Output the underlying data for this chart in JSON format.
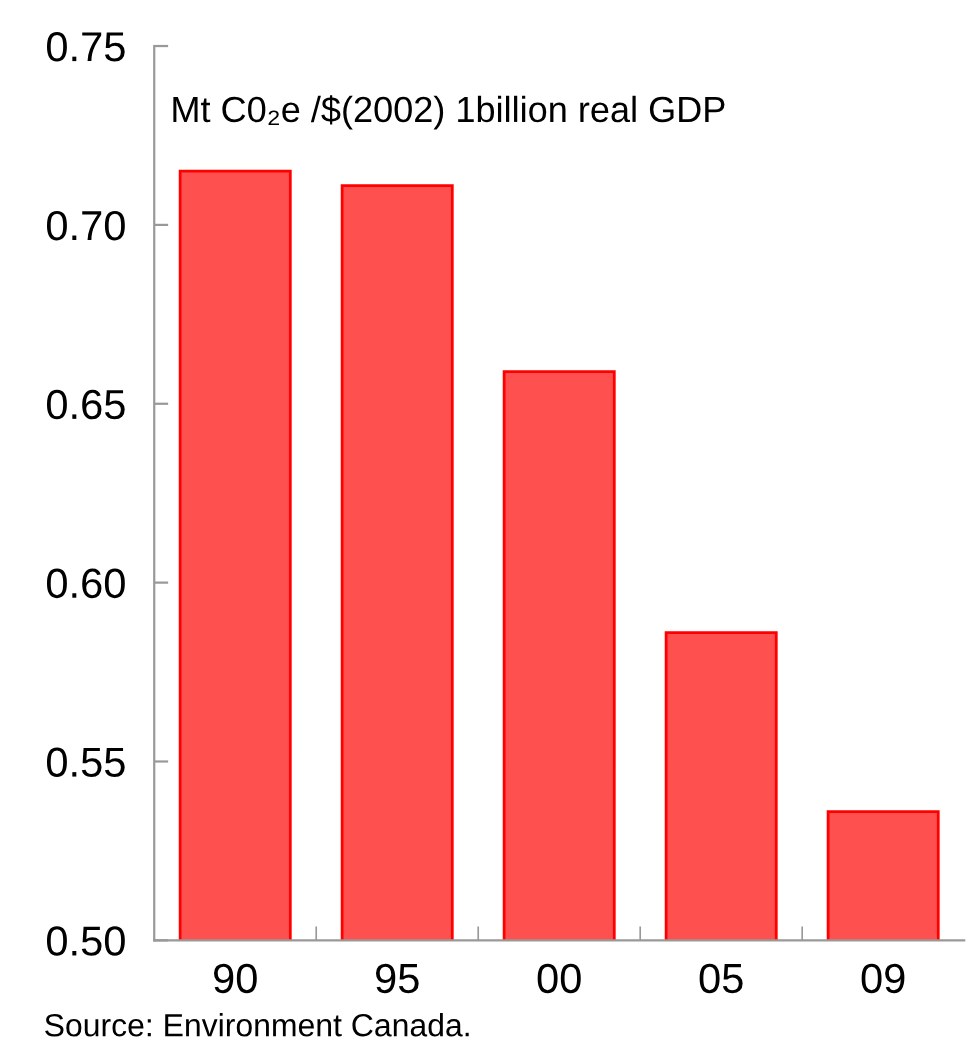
{
  "chart_data": {
    "type": "bar",
    "ylabel": "Mt C0₂e /$(2002) 1billion real GDP",
    "categories": [
      "90",
      "95",
      "00",
      "05",
      "09"
    ],
    "values": [
      0.715,
      0.711,
      0.659,
      0.586,
      0.536
    ],
    "color": "#ff5050",
    "ylim": [
      0.5,
      0.75
    ],
    "yticks": [
      {
        "value": 0.5,
        "label": "0.50"
      },
      0.55,
      {
        "value": 0.6,
        "label": "0.60"
      },
      0.65,
      {
        "value": 0.7,
        "label": "0.70"
      },
      0.75
    ],
    "grid": false,
    "legend": false,
    "annotations": [
      "Source: Environment Canada."
    ]
  }
}
